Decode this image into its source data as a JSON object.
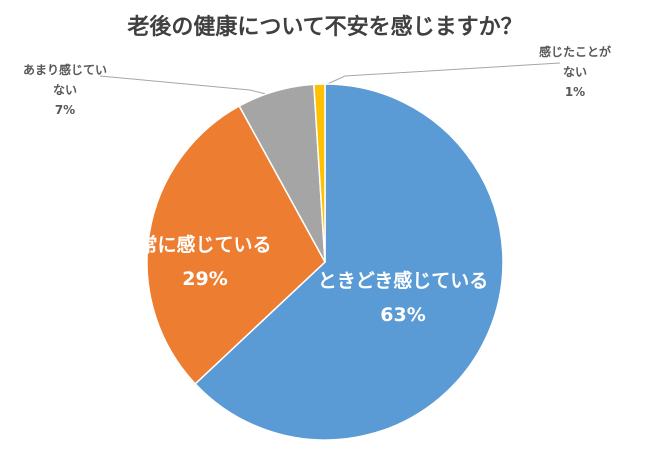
{
  "chart_data": {
    "type": "pie",
    "title": "老後の健康について不安を感じますか？",
    "categories": [
      "ときどき感じている",
      "常に感じている",
      "あまり感じていない",
      "感じたことがない"
    ],
    "values": [
      63,
      29,
      7,
      1
    ],
    "value_labels": [
      "63%",
      "29%",
      "7%",
      "1%"
    ],
    "colors": [
      "#5b9bd5",
      "#ed7d31",
      "#a5a5a5",
      "#ffc000"
    ]
  }
}
